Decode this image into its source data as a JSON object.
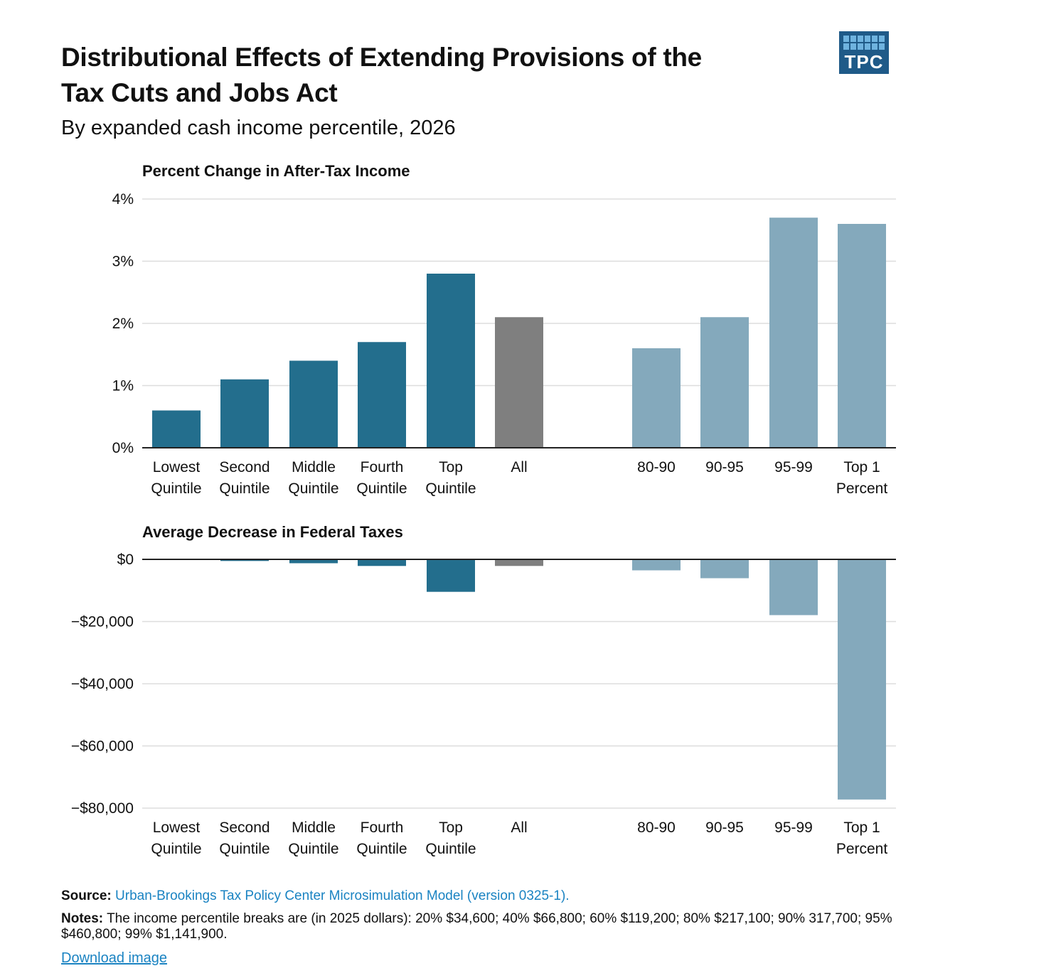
{
  "header": {
    "title_line1": "Distributional Effects of Extending Provisions of the",
    "title_line2": "Tax Cuts and Jobs Act",
    "subtitle": "By expanded cash income percentile, 2026",
    "logo_text": "TPC"
  },
  "colors": {
    "quintile": "#236e8d",
    "all": "#7f7f7f",
    "top_groups": "#84a9bc",
    "grid": "#dddddd",
    "axis": "#222222",
    "link": "#1a83c2",
    "logo_bg": "#1f5a88"
  },
  "chart_data": [
    {
      "type": "bar",
      "title": "Percent Change in After-Tax Income",
      "categories": [
        [
          "Lowest",
          "Quintile"
        ],
        [
          "Second",
          "Quintile"
        ],
        [
          "Middle",
          "Quintile"
        ],
        [
          "Fourth",
          "Quintile"
        ],
        [
          "Top",
          "Quintile"
        ],
        [
          "All"
        ],
        [
          "80-90"
        ],
        [
          "90-95"
        ],
        [
          "95-99"
        ],
        [
          "Top 1",
          "Percent"
        ]
      ],
      "values": [
        0.6,
        1.1,
        1.4,
        1.7,
        2.8,
        2.1,
        1.6,
        2.1,
        3.7,
        3.6
      ],
      "bar_groups": [
        "quintile",
        "quintile",
        "quintile",
        "quintile",
        "quintile",
        "all",
        "top_groups",
        "top_groups",
        "top_groups",
        "top_groups"
      ],
      "unit": "%",
      "ylim": [
        0,
        4
      ],
      "yticks": [
        0,
        1,
        2,
        3,
        4
      ],
      "ytick_labels": [
        "0%",
        "1%",
        "2%",
        "3%",
        "4%"
      ],
      "grid": true
    },
    {
      "type": "bar",
      "title": "Average Decrease in Federal Taxes",
      "categories": [
        [
          "Lowest",
          "Quintile"
        ],
        [
          "Second",
          "Quintile"
        ],
        [
          "Middle",
          "Quintile"
        ],
        [
          "Fourth",
          "Quintile"
        ],
        [
          "Top",
          "Quintile"
        ],
        [
          "All"
        ],
        [
          "80-90"
        ],
        [
          "90-95"
        ],
        [
          "95-99"
        ],
        [
          "Top 1",
          "Percent"
        ]
      ],
      "values": [
        -60,
        -520,
        -1240,
        -2120,
        -10440,
        -2120,
        -3530,
        -6060,
        -17930,
        -77230
      ],
      "bar_groups": [
        "quintile",
        "quintile",
        "quintile",
        "quintile",
        "quintile",
        "all",
        "top_groups",
        "top_groups",
        "top_groups",
        "top_groups"
      ],
      "unit": "$",
      "ylim": [
        -80000,
        0
      ],
      "yticks": [
        0,
        -20000,
        -40000,
        -60000,
        -80000
      ],
      "ytick_labels": [
        "$0",
        "−$20,000",
        "−$40,000",
        "−$60,000",
        "−$80,000"
      ],
      "grid": true
    }
  ],
  "footer": {
    "source_label": "Source:",
    "source_text": "Urban-Brookings Tax Policy Center Microsimulation Model (version 0325-1).",
    "notes_label": "Notes:",
    "notes_text": "The income percentile breaks are (in 2025 dollars): 20% $34,600; 40% $66,800; 60% $119,200; 80% $217,100; 90% 317,700; 95% $460,800; 99% $1,141,900.",
    "download_label": "Download image"
  }
}
